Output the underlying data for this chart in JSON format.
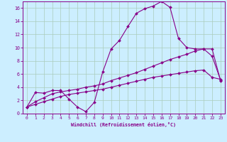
{
  "xlabel": "Windchill (Refroidissement éolien,°C)",
  "bg_color": "#cceeff",
  "line_color": "#880088",
  "grid_color": "#aaccbb",
  "xlim": [
    -0.5,
    23.5
  ],
  "ylim": [
    0,
    17
  ],
  "xticks": [
    0,
    1,
    2,
    3,
    4,
    5,
    6,
    7,
    8,
    9,
    10,
    11,
    12,
    13,
    14,
    15,
    16,
    17,
    18,
    19,
    20,
    21,
    22,
    23
  ],
  "yticks": [
    0,
    2,
    4,
    6,
    8,
    10,
    12,
    14,
    16
  ],
  "line1_x": [
    0,
    1,
    2,
    3,
    4,
    5,
    6,
    7,
    8,
    9,
    10,
    11,
    12,
    13,
    14,
    15,
    16,
    17,
    18,
    19,
    20,
    21,
    22,
    23
  ],
  "line1_y": [
    1.0,
    3.2,
    3.1,
    3.5,
    3.5,
    2.2,
    1.0,
    0.3,
    1.7,
    6.3,
    9.8,
    11.1,
    13.2,
    15.2,
    15.9,
    16.3,
    17.0,
    16.1,
    11.4,
    10.0,
    9.8,
    9.8,
    8.7,
    5.1
  ],
  "line2_x": [
    0,
    1,
    2,
    3,
    4,
    5,
    6,
    7,
    8,
    9,
    10,
    11,
    12,
    13,
    14,
    15,
    16,
    17,
    18,
    19,
    20,
    21,
    22,
    23
  ],
  "line2_y": [
    1.0,
    1.8,
    2.4,
    3.0,
    3.3,
    3.5,
    3.7,
    4.0,
    4.2,
    4.5,
    5.0,
    5.4,
    5.8,
    6.2,
    6.7,
    7.2,
    7.7,
    8.2,
    8.6,
    9.0,
    9.5,
    9.8,
    9.8,
    5.0
  ],
  "line3_x": [
    0,
    1,
    2,
    3,
    4,
    5,
    6,
    7,
    8,
    9,
    10,
    11,
    12,
    13,
    14,
    15,
    16,
    17,
    18,
    19,
    20,
    21,
    22,
    23
  ],
  "line3_y": [
    1.0,
    1.4,
    1.8,
    2.2,
    2.6,
    2.9,
    3.1,
    3.3,
    3.5,
    3.7,
    4.0,
    4.3,
    4.6,
    4.9,
    5.2,
    5.5,
    5.7,
    5.9,
    6.1,
    6.3,
    6.5,
    6.6,
    5.5,
    5.2
  ]
}
